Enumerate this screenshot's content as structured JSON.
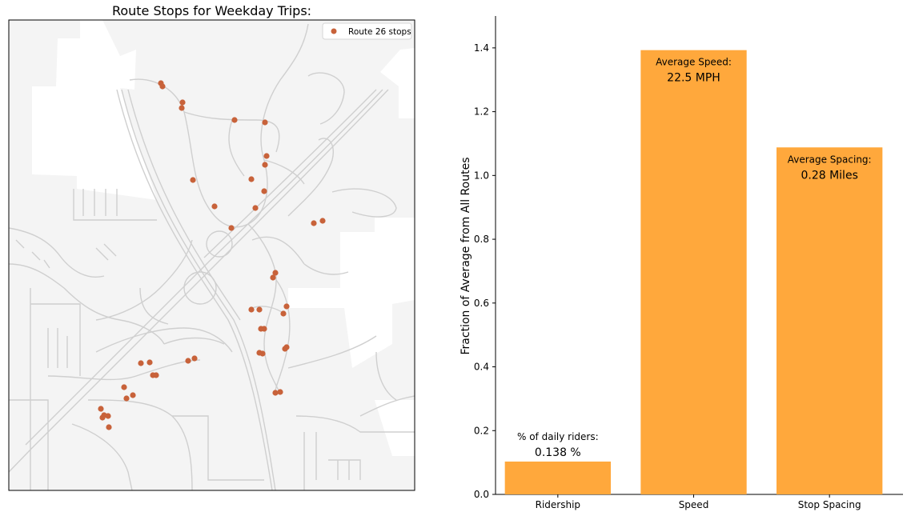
{
  "map": {
    "title": "Route Stops for Weekday Trips:",
    "legend_label": "Route 26 stops",
    "stop_color": "#c8623a",
    "stop_count": 44
  },
  "chart_data": {
    "type": "bar",
    "categories": [
      "Ridership",
      "Speed",
      "Stop Spacing"
    ],
    "values": [
      0.103,
      1.393,
      1.088
    ],
    "ylabel": "Fraction of Average from All Routes",
    "ylim": [
      0,
      1.5
    ],
    "yticks": [
      "0.0",
      "0.2",
      "0.4",
      "0.6",
      "0.8",
      "1.0",
      "1.2",
      "1.4"
    ],
    "bar_color": "#ffa83c",
    "annotations": [
      {
        "label": "% of daily riders:",
        "value": "0.138 %"
      },
      {
        "label": "Average Speed:",
        "value": "22.5 MPH"
      },
      {
        "label": "Average Spacing:",
        "value": "0.28 Miles"
      }
    ],
    "grid": false
  }
}
